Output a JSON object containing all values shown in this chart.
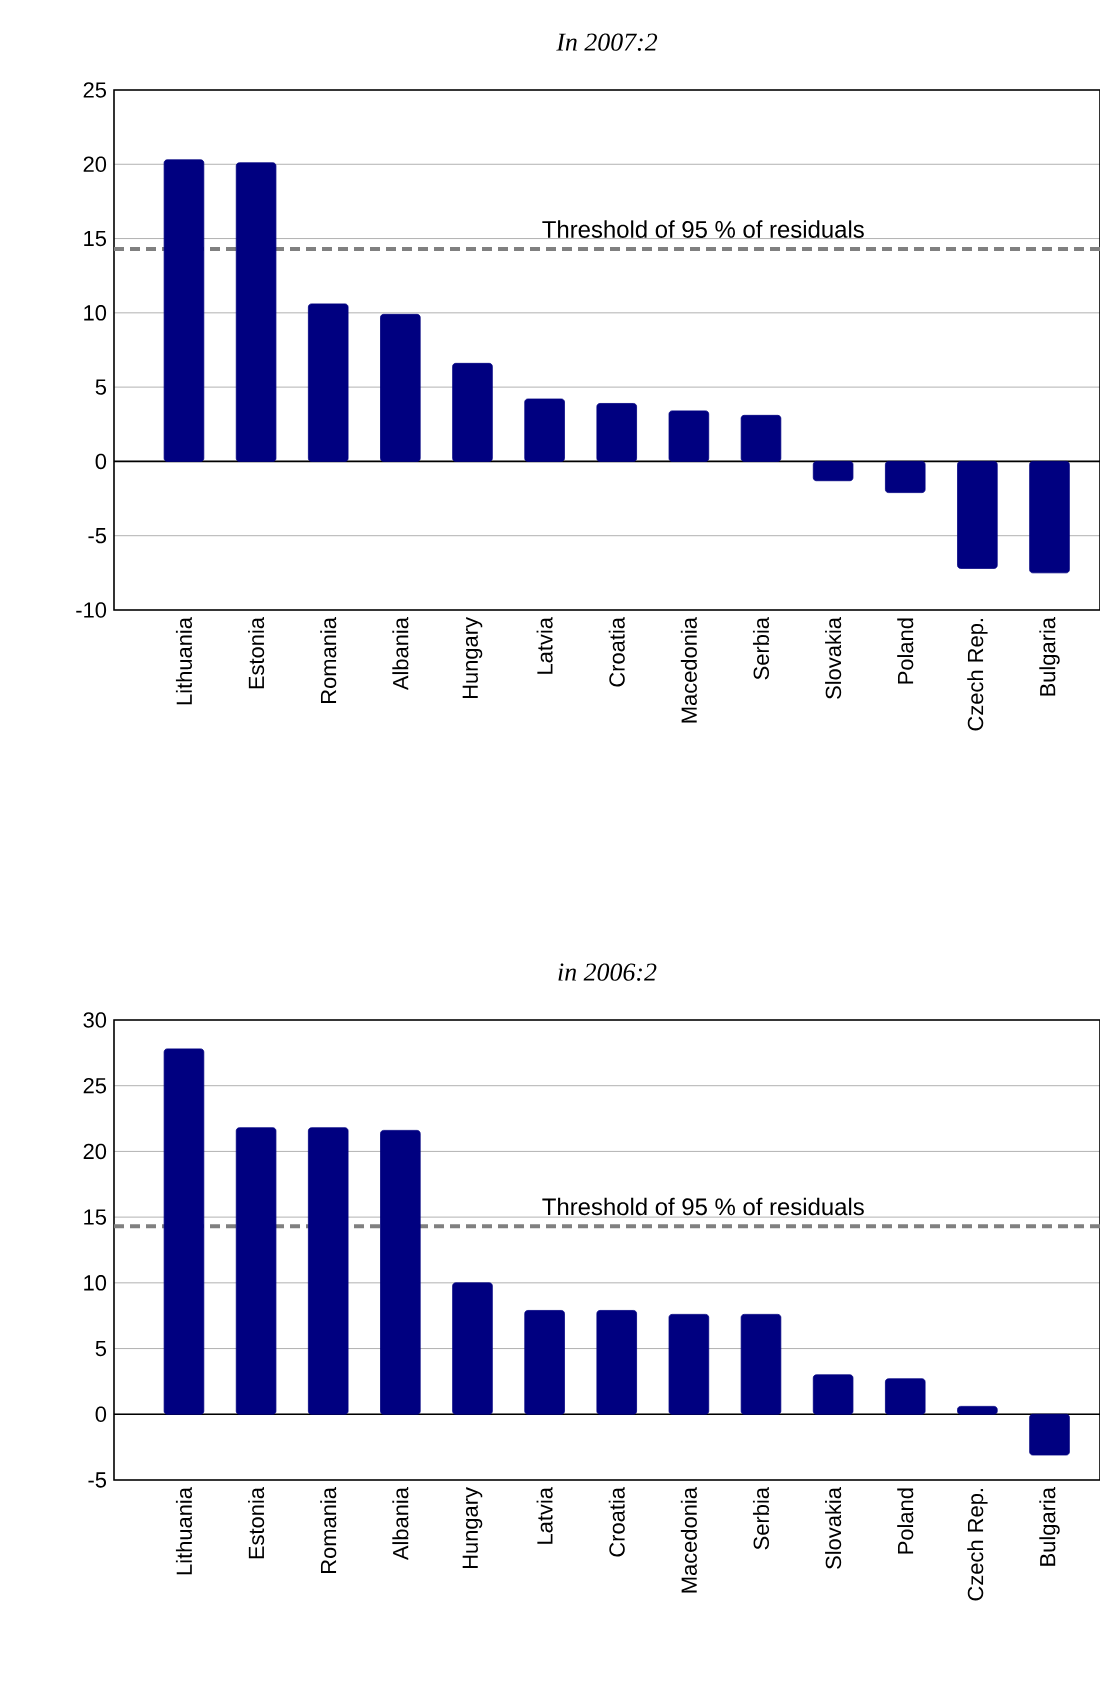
{
  "chart_data": [
    {
      "type": "bar",
      "title": "In 2007:2",
      "categories": [
        "Lithuania",
        "Estonia",
        "Romania",
        "Albania",
        "Hungary",
        "Latvia",
        "Croatia",
        "Macedonia",
        "Serbia",
        "Slovakia",
        "Poland",
        "Czech Rep.",
        "Bulgaria"
      ],
      "values": [
        20.3,
        20.1,
        10.6,
        9.9,
        6.6,
        4.2,
        3.9,
        3.4,
        3.1,
        -1.3,
        -2.1,
        -7.2,
        -7.5
      ],
      "color": "#000080",
      "ylim": [
        -10,
        25
      ],
      "yticks": [
        -10,
        -5,
        0,
        5,
        10,
        15,
        20,
        25
      ],
      "grid": "y",
      "ref_lines": [
        {
          "axis": "y",
          "value": 14.3,
          "label": "Threshold of 95 % of residuals",
          "color": "#808080",
          "line_style": "dashed"
        }
      ]
    },
    {
      "type": "bar",
      "title": "in 2006:2",
      "categories": [
        "Lithuania",
        "Estonia",
        "Romania",
        "Albania",
        "Hungary",
        "Latvia",
        "Croatia",
        "Macedonia",
        "Serbia",
        "Slovakia",
        "Poland",
        "Czech Rep.",
        "Bulgaria"
      ],
      "values": [
        27.8,
        21.8,
        21.8,
        21.6,
        10.0,
        7.9,
        7.9,
        7.6,
        7.6,
        3.0,
        2.7,
        0.6,
        -3.1
      ],
      "color": "#000080",
      "ylim": [
        -5,
        30
      ],
      "yticks": [
        -5,
        0,
        5,
        10,
        15,
        20,
        25,
        30
      ],
      "grid": "y",
      "ref_lines": [
        {
          "axis": "y",
          "value": 14.3,
          "label": "Threshold of 95 % of residuals",
          "color": "#808080",
          "line_style": "dashed"
        }
      ]
    }
  ]
}
